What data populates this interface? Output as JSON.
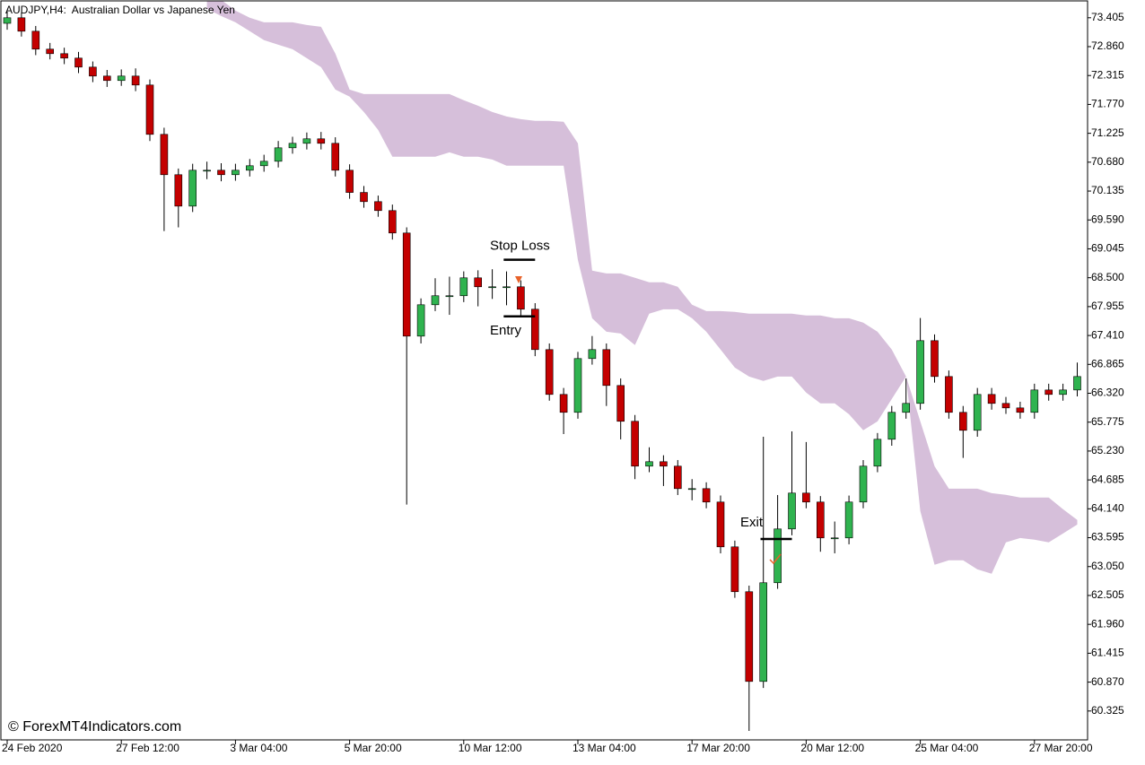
{
  "chart_data": {
    "type": "candlestick",
    "title": "AUDJPY,H4:  Australian Dollar vs Japanese Yen",
    "watermark": "© ForexMT4Indicators.com",
    "categories": [
      "24 Feb 2020",
      null,
      null,
      null,
      null,
      null,
      null,
      null,
      "27 Feb 12:00",
      null,
      null,
      null,
      null,
      null,
      null,
      null,
      "3 Mar 04:00",
      null,
      null,
      null,
      null,
      null,
      null,
      null,
      "5 Mar 20:00",
      null,
      null,
      null,
      null,
      null,
      null,
      null,
      "10 Mar 12:00",
      null,
      null,
      null,
      null,
      null,
      null,
      null,
      "13 Mar 04:00",
      null,
      null,
      null,
      null,
      null,
      null,
      null,
      "17 Mar 20:00",
      null,
      null,
      null,
      null,
      null,
      null,
      null,
      "20 Mar 12:00",
      null,
      null,
      null,
      null,
      null,
      null,
      null,
      "25 Mar 04:00",
      null,
      null,
      null,
      null,
      null,
      null,
      null,
      "27 Mar 20:00",
      null,
      null,
      null
    ],
    "open": [
      73.3,
      73.405,
      73.151,
      72.813,
      72.728,
      72.644,
      72.474,
      72.305,
      72.221,
      72.305,
      72.136,
      71.205,
      70.444,
      69.851,
      70.528,
      70.528,
      70.444,
      70.528,
      70.613,
      70.697,
      70.951,
      71.036,
      71.121,
      71.036,
      70.528,
      70.109,
      69.936,
      69.767,
      69.344,
      67.398,
      67.99,
      68.16,
      68.16,
      68.498,
      68.329,
      68.329,
      68.329,
      67.906,
      67.144,
      66.298,
      65.96,
      66.975,
      67.144,
      66.467,
      65.791,
      64.945,
      65.029,
      64.945,
      64.521,
      64.521,
      64.268,
      63.422,
      62.576,
      60.883,
      62.745,
      63.76,
      64.437,
      64.268,
      63.591,
      63.591,
      64.268,
      64.945,
      65.452,
      65.96,
      66.129,
      67.313,
      66.636,
      65.96,
      65.621,
      66.298,
      66.129,
      66.044,
      65.96,
      66.382,
      66.298,
      66.382
    ],
    "high": [
      73.52,
      73.5,
      73.25,
      72.93,
      72.84,
      72.76,
      72.58,
      72.42,
      72.43,
      72.45,
      72.24,
      71.33,
      70.56,
      70.65,
      70.69,
      70.66,
      70.65,
      70.74,
      70.82,
      71.08,
      71.16,
      71.24,
      71.25,
      71.15,
      70.64,
      70.23,
      70.05,
      69.88,
      69.45,
      68.11,
      68.49,
      68.52,
      68.62,
      68.64,
      68.66,
      68.62,
      68.45,
      68.02,
      67.26,
      66.42,
      67.1,
      67.4,
      67.26,
      66.6,
      65.91,
      65.3,
      65.15,
      65.06,
      64.7,
      64.64,
      64.39,
      63.54,
      62.69,
      65.5,
      64.4,
      65.6,
      65.4,
      64.38,
      63.9,
      64.39,
      65.06,
      65.57,
      66.08,
      66.6,
      67.74,
      67.43,
      66.75,
      66.08,
      66.42,
      66.42,
      66.25,
      66.16,
      66.5,
      66.5,
      66.5,
      66.9
    ],
    "low": [
      73.18,
      73.05,
      72.7,
      72.62,
      72.53,
      72.36,
      72.19,
      72.1,
      72.12,
      72.02,
      71.08,
      69.38,
      69.45,
      69.74,
      70.36,
      70.32,
      70.33,
      70.41,
      70.5,
      70.58,
      70.84,
      70.92,
      70.92,
      70.41,
      69.99,
      69.82,
      69.65,
      69.22,
      64.22,
      67.26,
      67.87,
      67.8,
      68.04,
      67.96,
      68.1,
      67.98,
      67.79,
      67.02,
      66.18,
      65.55,
      65.84,
      66.86,
      66.08,
      65.45,
      64.7,
      64.83,
      64.57,
      64.4,
      64.3,
      64.15,
      63.3,
      62.46,
      59.95,
      60.76,
      62.63,
      63.64,
      64.15,
      63.33,
      63.3,
      63.47,
      64.15,
      64.83,
      65.33,
      65.84,
      66.01,
      66.52,
      65.84,
      65.1,
      65.5,
      66.01,
      65.93,
      65.84,
      65.84,
      66.18,
      66.18,
      66.26
    ],
    "close": [
      73.405,
      73.151,
      72.813,
      72.728,
      72.644,
      72.474,
      72.305,
      72.221,
      72.305,
      72.136,
      71.205,
      70.444,
      69.851,
      70.528,
      70.528,
      70.444,
      70.528,
      70.613,
      70.697,
      70.951,
      71.036,
      71.121,
      71.036,
      70.528,
      70.109,
      69.936,
      69.767,
      69.344,
      67.398,
      67.99,
      68.16,
      68.16,
      68.498,
      68.329,
      68.329,
      68.329,
      67.906,
      67.144,
      66.298,
      65.96,
      66.975,
      67.144,
      66.467,
      65.791,
      64.945,
      65.029,
      64.945,
      64.521,
      64.521,
      64.268,
      63.422,
      62.576,
      60.883,
      62.745,
      63.76,
      64.437,
      64.268,
      63.591,
      63.591,
      64.268,
      64.945,
      65.452,
      65.96,
      66.129,
      67.313,
      66.636,
      65.96,
      65.621,
      66.298,
      66.129,
      66.044,
      65.96,
      66.382,
      66.298,
      66.382,
      66.636
    ],
    "up_color": "#2fb34f",
    "down_color": "#c40000",
    "cloud": {
      "color": "#d6bfda",
      "upper": [
        null,
        null,
        null,
        null,
        null,
        null,
        null,
        null,
        null,
        null,
        null,
        null,
        null,
        null,
        73.743,
        73.743,
        73.54,
        73.405,
        73.32,
        73.32,
        73.32,
        73.269,
        73.235,
        72.728,
        72.051,
        71.966,
        71.966,
        71.966,
        71.966,
        71.966,
        71.966,
        71.966,
        71.848,
        71.746,
        71.628,
        71.543,
        71.492,
        71.459,
        71.459,
        71.442,
        71.036,
        68.633,
        68.582,
        68.582,
        68.498,
        68.413,
        68.413,
        68.329,
        67.99,
        67.871,
        67.871,
        67.855,
        67.821,
        67.821,
        67.821,
        67.821,
        67.787,
        67.787,
        67.736,
        67.736,
        67.652,
        67.482,
        67.144,
        66.636,
        65.79,
        64.944,
        64.521,
        64.521,
        64.521,
        64.436,
        64.403,
        64.352,
        64.352,
        64.352,
        64.132,
        63.929
      ],
      "lower": [
        null,
        null,
        null,
        null,
        null,
        null,
        null,
        null,
        null,
        null,
        null,
        null,
        null,
        null,
        73.574,
        73.438,
        73.32,
        73.151,
        72.982,
        72.897,
        72.812,
        72.643,
        72.474,
        72.051,
        71.916,
        71.628,
        71.289,
        70.782,
        70.782,
        70.782,
        70.782,
        70.866,
        70.782,
        70.782,
        70.731,
        70.613,
        70.613,
        70.613,
        70.613,
        70.613,
        68.836,
        67.736,
        67.482,
        67.448,
        67.229,
        67.821,
        67.905,
        67.905,
        67.736,
        67.482,
        67.144,
        66.805,
        66.636,
        66.552,
        66.636,
        66.636,
        66.332,
        66.129,
        66.129,
        65.925,
        65.621,
        65.79,
        66.213,
        66.636,
        64.098,
        63.083,
        63.168,
        63.168,
        62.998,
        62.914,
        63.506,
        63.59,
        63.557,
        63.506,
        63.675,
        63.844
      ]
    },
    "annotations": [
      {
        "text": "Stop Loss",
        "price": 68.84
      },
      {
        "text": "Entry",
        "price": 67.77
      },
      {
        "text": "Exit",
        "price": 63.57
      }
    ],
    "ylim": [
      59.78,
      73.74
    ],
    "yticks": [
      73.405,
      {
        "value": 72.86,
        "label": "72.860"
      },
      72.315,
      {
        "value": 71.77,
        "label": "71.770"
      },
      71.225,
      {
        "value": 70.68,
        "label": "70.680"
      },
      70.135,
      {
        "value": 69.59,
        "label": "69.590"
      },
      69.045,
      {
        "value": 68.5,
        "label": "68.500"
      },
      67.955,
      {
        "value": 67.41,
        "label": "67.410"
      },
      66.865,
      {
        "value": 66.32,
        "label": "66.320"
      },
      65.775,
      {
        "value": 65.23,
        "label": "65.230"
      },
      64.685,
      {
        "value": 64.14,
        "label": "64.140"
      },
      63.595,
      {
        "value": 63.05,
        "label": "63.050"
      },
      62.505,
      {
        "value": 61.96,
        "label": "61.960"
      },
      61.415,
      {
        "value": 60.87,
        "label": "60.870"
      },
      60.325
    ]
  }
}
